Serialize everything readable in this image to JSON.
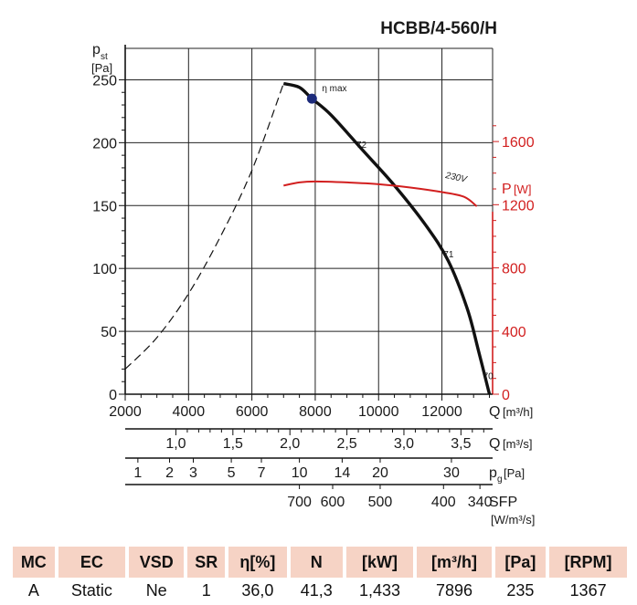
{
  "title": "HCBB/4-560/H",
  "chart_data": {
    "type": "line",
    "y_left": {
      "label_main": "p",
      "label_sub": "st",
      "unit": "[Pa]",
      "ticks": [
        "0",
        "50",
        "100",
        "150",
        "200",
        "250"
      ],
      "range": [
        0,
        275
      ]
    },
    "y_right": {
      "label": "P",
      "unit": "[W]",
      "ticks": [
        "0",
        "400",
        "800",
        "1200",
        "1600"
      ],
      "range": [
        0,
        2190
      ],
      "color": "#d21f1f"
    },
    "x_axes": [
      {
        "label": "Q",
        "unit": "[m³/h]",
        "ticks": [
          {
            "v": 2000,
            "t": "2000"
          },
          {
            "v": 4000,
            "t": "4000"
          },
          {
            "v": 6000,
            "t": "6000"
          },
          {
            "v": 8000,
            "t": "8000"
          },
          {
            "v": 10000,
            "t": "10000"
          },
          {
            "v": 12000,
            "t": "12000"
          }
        ]
      },
      {
        "label": "Q",
        "unit": "[m³/s]",
        "ticks": [
          {
            "v": 3600,
            "t": "1,0"
          },
          {
            "v": 5400,
            "t": "1,5"
          },
          {
            "v": 7200,
            "t": "2,0"
          },
          {
            "v": 9000,
            "t": "2,5"
          },
          {
            "v": 10800,
            "t": "3,0"
          },
          {
            "v": 12600,
            "t": "3,5"
          }
        ]
      },
      {
        "label": "p",
        "label_sub": "g",
        "unit": "[Pa]",
        "ticks": [
          {
            "v": 2400,
            "t": "1"
          },
          {
            "v": 3400,
            "t": "2"
          },
          {
            "v": 4150,
            "t": "3"
          },
          {
            "v": 5350,
            "t": "5"
          },
          {
            "v": 6300,
            "t": "7"
          },
          {
            "v": 7500,
            "t": "10"
          },
          {
            "v": 8850,
            "t": "14"
          },
          {
            "v": 10050,
            "t": "20"
          },
          {
            "v": 12300,
            "t": "30"
          }
        ]
      },
      {
        "label": "SFP",
        "unit": "[W/m³/s]",
        "ticks": [
          {
            "v": 7500,
            "t": "700"
          },
          {
            "v": 8550,
            "t": "600"
          },
          {
            "v": 10050,
            "t": "500"
          },
          {
            "v": 12050,
            "t": "400"
          },
          {
            "v": 13200,
            "t": "340"
          }
        ]
      }
    ],
    "x_range": [
      2000,
      13600
    ],
    "series": [
      {
        "style": "solid",
        "color": "#111111",
        "points": [
          [
            7000,
            247
          ],
          [
            7500,
            244
          ],
          [
            7896,
            235
          ],
          [
            8500,
            222
          ],
          [
            9500,
            194
          ],
          [
            10500,
            166
          ],
          [
            11500,
            134
          ],
          [
            12200,
            106
          ],
          [
            12800,
            68
          ],
          [
            13150,
            35
          ],
          [
            13500,
            0
          ]
        ],
        "labels": [
          {
            "text": "72",
            "x": 9300,
            "y": 196
          },
          {
            "text": "71",
            "x": 12050,
            "y": 109
          },
          {
            "text": "70",
            "x": 13300,
            "y": 12
          }
        ]
      },
      {
        "style": "dashed",
        "color": "#111111",
        "points": [
          [
            2000,
            20
          ],
          [
            3000,
            45
          ],
          [
            4000,
            80
          ],
          [
            5000,
            125
          ],
          [
            6000,
            178
          ],
          [
            7000,
            247
          ]
        ]
      },
      {
        "style": "solid",
        "axis": "right",
        "color": "#d21f1f",
        "points": [
          [
            7000,
            1321
          ],
          [
            7500,
            1341
          ],
          [
            8000,
            1347
          ],
          [
            9000,
            1341
          ],
          [
            10000,
            1330
          ],
          [
            11000,
            1309
          ],
          [
            12000,
            1280
          ],
          [
            12700,
            1250
          ],
          [
            13100,
            1190
          ]
        ],
        "labels": [
          {
            "text": "230V",
            "x": 12100,
            "y": 1370
          }
        ]
      }
    ],
    "operating_point": {
      "x": 7896,
      "y": 235,
      "label": "η max",
      "color": "#1c2a7a"
    },
    "grid": true
  },
  "table": {
    "headers": [
      "MC",
      "EC",
      "VSD",
      "SR",
      "η[%]",
      "N",
      "[kW]",
      "[m³/h]",
      "[Pa]",
      "[RPM]"
    ],
    "values": [
      "A",
      "Static",
      "Ne",
      "1",
      "36,0",
      "41,3",
      "1,433",
      "7896",
      "235",
      "1367"
    ]
  }
}
